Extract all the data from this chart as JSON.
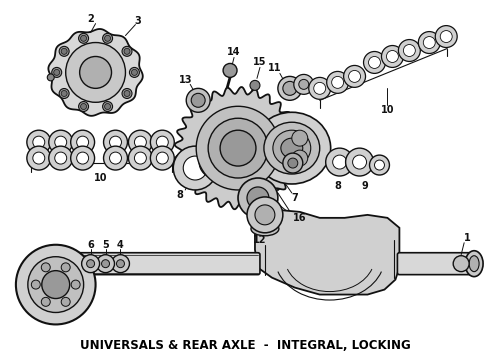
{
  "title": "UNIVERSALS & REAR AXLE  -  INTEGRAL, LOCKING",
  "title_fontsize": 8.5,
  "title_fontweight": "bold",
  "background_color": "#ffffff",
  "line_color": "#111111",
  "figsize": [
    4.9,
    3.6
  ],
  "dpi": 100
}
